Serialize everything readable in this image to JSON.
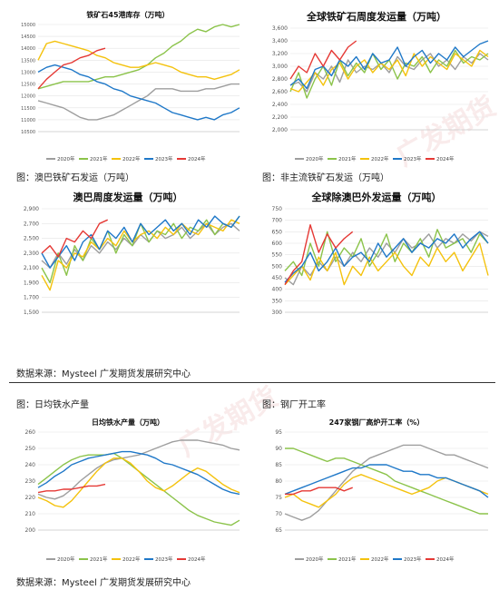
{
  "watermark": "广发期货",
  "colors": {
    "s2020": "#9e9e9e",
    "s2021": "#8bc34a",
    "s2022": "#f4c20d",
    "s2023": "#1f78c8",
    "s2024": "#e53935"
  },
  "captions": {
    "c1": "图：澳巴铁矿石发运（万吨）",
    "c2": "图：非主流铁矿石发运（万吨）",
    "c3": "图：日均铁水产量",
    "c4": "图：钢厂开工率"
  },
  "sources": {
    "s1": "数据来源：Mysteel  广发期货发展研究中心",
    "s2": "数据来源：Mysteel  广发期货发展研究中心"
  },
  "chart_data": [
    {
      "type": "line",
      "title": "铁矿石45港库存（万吨）",
      "ylim": [
        10500,
        15000
      ],
      "yticks": [
        "10500",
        "11000",
        "11500",
        "12000",
        "12500",
        "13000",
        "13500",
        "14000",
        "14500",
        "15000"
      ],
      "legend": [
        "2020年",
        "2021年",
        "2022年",
        "2023年",
        "2024年"
      ],
      "series": [
        {
          "name": "2020年",
          "values": [
            11800,
            11700,
            11600,
            11500,
            11300,
            11100,
            11000,
            11000,
            11100,
            11200,
            11400,
            11600,
            11800,
            12000,
            12300,
            12300,
            12300,
            12200,
            12200,
            12200,
            12300,
            12300,
            12400,
            12500,
            12500
          ]
        },
        {
          "name": "2021年",
          "values": [
            12300,
            12400,
            12500,
            12600,
            12600,
            12600,
            12600,
            12700,
            12800,
            12800,
            12900,
            13000,
            13100,
            13300,
            13600,
            13800,
            14100,
            14300,
            14600,
            14800,
            14700,
            14900,
            15000,
            14900,
            15000
          ]
        },
        {
          "name": "2022年",
          "values": [
            13500,
            14200,
            14300,
            14200,
            14100,
            14000,
            13900,
            13700,
            13600,
            13400,
            13300,
            13200,
            13200,
            13300,
            13400,
            13300,
            13200,
            13000,
            12900,
            12800,
            12800,
            12700,
            12800,
            12900,
            13100
          ]
        },
        {
          "name": "2023年",
          "values": [
            13000,
            13200,
            13300,
            13200,
            13100,
            12900,
            12800,
            12600,
            12500,
            12300,
            12200,
            12000,
            11900,
            11800,
            11700,
            11500,
            11300,
            11200,
            11100,
            11000,
            11100,
            11000,
            11200,
            11300,
            11500
          ]
        },
        {
          "name": "2024年",
          "values": [
            12300,
            12700,
            13000,
            13300,
            13400,
            13600,
            13700,
            13900,
            14000
          ]
        }
      ]
    },
    {
      "type": "line",
      "title": "全球铁矿石周度发运量（万吨）",
      "ylim": [
        2000,
        3600
      ],
      "yticks": [
        "2,000",
        "2,200",
        "2,400",
        "2,600",
        "2,800",
        "3,000",
        "3,200",
        "3,400",
        "3,600"
      ],
      "legend": [
        "2020年",
        "2021年",
        "2022年",
        "2023年",
        "2024年"
      ],
      "series": [
        {
          "name": "2020年",
          "values": [
            2700,
            2750,
            2600,
            2900,
            2800,
            3000,
            2750,
            3100,
            2900,
            3000,
            2950,
            3050,
            2900,
            3150,
            3000,
            2950,
            3100,
            3200,
            3000,
            3100,
            2950,
            3150,
            3050,
            3200,
            3100
          ]
        },
        {
          "name": "2021年",
          "values": [
            2600,
            2900,
            2500,
            2800,
            3000,
            2700,
            3100,
            2850,
            3050,
            2900,
            3200,
            2950,
            3100,
            2800,
            3050,
            3000,
            3150,
            2900,
            3100,
            3000,
            3250,
            3050,
            3150,
            3100,
            3200
          ]
        },
        {
          "name": "2022年",
          "values": [
            2650,
            2600,
            2750,
            2900,
            2700,
            2950,
            3050,
            2800,
            3000,
            3100,
            2900,
            3050,
            2950,
            3100,
            2850,
            3200,
            3000,
            3150,
            3050,
            2950,
            3200,
            3100,
            3000,
            3250,
            3150
          ]
        },
        {
          "name": "2023年",
          "values": [
            2700,
            2800,
            2650,
            2950,
            3000,
            2850,
            3100,
            3000,
            3150,
            2950,
            3200,
            3050,
            3100,
            3300,
            3000,
            3150,
            3250,
            3050,
            3200,
            3100,
            3300,
            3150,
            3250,
            3350,
            3400
          ]
        },
        {
          "name": "2024年",
          "values": [
            2800,
            3000,
            2900,
            3200,
            3000,
            3250,
            3100,
            3300,
            3400
          ]
        }
      ]
    },
    {
      "type": "line",
      "title": "澳巴周度发运量（万吨）",
      "ylim": [
        1500,
        2900
      ],
      "yticks": [
        "1,500",
        "1,700",
        "1,900",
        "2,100",
        "2,300",
        "2,500",
        "2,700",
        "2,900"
      ],
      "series": [
        {
          "name": "2020年",
          "values": [
            2200,
            2100,
            2300,
            2150,
            2350,
            2200,
            2400,
            2300,
            2450,
            2350,
            2500,
            2400,
            2550,
            2450,
            2600,
            2500,
            2550,
            2650,
            2500,
            2600,
            2700,
            2550,
            2650,
            2700,
            2600
          ]
        },
        {
          "name": "2021年",
          "values": [
            2100,
            1900,
            2300,
            2000,
            2400,
            2200,
            2500,
            2350,
            2600,
            2300,
            2550,
            2400,
            2700,
            2450,
            2600,
            2550,
            2700,
            2500,
            2650,
            2600,
            2750,
            2550,
            2700,
            2650,
            2800
          ]
        },
        {
          "name": "2022年",
          "values": [
            2000,
            1800,
            2200,
            2100,
            2300,
            2250,
            2450,
            2350,
            2500,
            2400,
            2600,
            2450,
            2550,
            2600,
            2500,
            2650,
            2550,
            2700,
            2600,
            2550,
            2700,
            2650,
            2600,
            2750,
            2700
          ]
        },
        {
          "name": "2023年",
          "values": [
            2300,
            2100,
            2250,
            2400,
            2200,
            2450,
            2550,
            2350,
            2600,
            2500,
            2650,
            2450,
            2700,
            2550,
            2650,
            2750,
            2600,
            2700,
            2550,
            2750,
            2650,
            2800,
            2700,
            2650,
            2800
          ]
        },
        {
          "name": "2024年",
          "values": [
            2300,
            2400,
            2250,
            2500,
            2450,
            2600,
            2500,
            2700,
            2750
          ]
        }
      ]
    },
    {
      "type": "line",
      "title": "全球除澳巴外发运量（万吨）",
      "ylim": [
        300,
        750
      ],
      "yticks": [
        "300",
        "350",
        "400",
        "450",
        "500",
        "550",
        "600",
        "650",
        "700",
        "750"
      ],
      "series": [
        {
          "name": "2020年",
          "values": [
            450,
            420,
            500,
            460,
            520,
            480,
            540,
            500,
            560,
            520,
            580,
            540,
            600,
            560,
            620,
            580,
            600,
            640,
            580,
            620,
            600,
            640,
            610,
            650,
            630
          ]
        },
        {
          "name": "2021年",
          "values": [
            480,
            520,
            460,
            600,
            500,
            650,
            520,
            580,
            540,
            620,
            500,
            560,
            640,
            520,
            600,
            560,
            620,
            540,
            660,
            580,
            600,
            620,
            560,
            640,
            600
          ]
        },
        {
          "name": "2022年",
          "values": [
            420,
            460,
            500,
            440,
            540,
            480,
            560,
            420,
            500,
            460,
            540,
            480,
            520,
            560,
            500,
            460,
            540,
            500,
            580,
            520,
            560,
            480,
            540,
            600,
            460
          ]
        },
        {
          "name": "2023年",
          "values": [
            430,
            470,
            500,
            560,
            480,
            520,
            580,
            500,
            540,
            560,
            520,
            600,
            540,
            580,
            620,
            560,
            600,
            580,
            620,
            600,
            640,
            580,
            620,
            650,
            600
          ]
        },
        {
          "name": "2024年",
          "values": [
            420,
            480,
            520,
            680,
            560,
            640,
            580,
            620,
            650
          ]
        }
      ]
    },
    {
      "type": "line",
      "title": "日均铁水产量（万吨）",
      "ylim": [
        200,
        260
      ],
      "yticks": [
        "200",
        "210",
        "220",
        "230",
        "240",
        "250",
        "260"
      ],
      "legend": [
        "2020年",
        "2021年",
        "2022年",
        "2023年",
        "2024年"
      ],
      "series": [
        {
          "name": "2020年",
          "values": [
            222,
            220,
            219,
            221,
            225,
            230,
            234,
            238,
            241,
            243,
            244,
            245,
            246,
            248,
            250,
            252,
            254,
            255,
            255,
            255,
            254,
            253,
            252,
            250,
            249
          ]
        },
        {
          "name": "2021年",
          "values": [
            228,
            232,
            236,
            240,
            243,
            245,
            246,
            246,
            246,
            247,
            244,
            240,
            236,
            232,
            228,
            224,
            220,
            216,
            212,
            209,
            207,
            205,
            204,
            203,
            206
          ]
        },
        {
          "name": "2022年",
          "values": [
            220,
            218,
            215,
            214,
            218,
            224,
            230,
            236,
            241,
            244,
            244,
            241,
            236,
            230,
            226,
            224,
            227,
            231,
            235,
            238,
            236,
            232,
            228,
            225,
            223
          ]
        },
        {
          "name": "2023年",
          "values": [
            226,
            229,
            233,
            236,
            240,
            242,
            244,
            245,
            246,
            247,
            248,
            248,
            247,
            246,
            244,
            241,
            240,
            238,
            236,
            234,
            231,
            228,
            225,
            223,
            222
          ]
        },
        {
          "name": "2024年",
          "values": [
            223,
            224,
            224,
            225,
            225,
            226,
            227,
            227,
            228
          ]
        }
      ]
    },
    {
      "type": "line",
      "title": "247家钢厂高炉开工率（%）",
      "ylim": [
        65,
        95
      ],
      "yticks": [
        "65",
        "70",
        "75",
        "80",
        "85",
        "90",
        "95"
      ],
      "legend": [
        "2020年",
        "2021年",
        "2022年",
        "2023年",
        "2024年"
      ],
      "series": [
        {
          "name": "2020年",
          "values": [
            70,
            69,
            68,
            69,
            71,
            74,
            77,
            80,
            83,
            85,
            87,
            88,
            89,
            90,
            91,
            91,
            91,
            90,
            89,
            88,
            88,
            87,
            86,
            85,
            84
          ]
        },
        {
          "name": "2021年",
          "values": [
            90,
            90,
            89,
            88,
            87,
            86,
            87,
            87,
            86,
            85,
            84,
            83,
            82,
            80,
            79,
            78,
            77,
            76,
            75,
            74,
            73,
            72,
            71,
            70,
            70
          ]
        },
        {
          "name": "2022年",
          "values": [
            75,
            76,
            74,
            73,
            72,
            74,
            76,
            79,
            81,
            82,
            81,
            80,
            79,
            78,
            77,
            76,
            77,
            78,
            80,
            81,
            80,
            79,
            78,
            77,
            76
          ]
        },
        {
          "name": "2023年",
          "values": [
            76,
            77,
            78,
            79,
            80,
            81,
            82,
            83,
            84,
            84,
            85,
            85,
            85,
            84,
            83,
            83,
            82,
            82,
            81,
            81,
            80,
            79,
            78,
            77,
            75
          ]
        },
        {
          "name": "2024年",
          "values": [
            76,
            76,
            77,
            77,
            78,
            78,
            78,
            77,
            78
          ]
        }
      ]
    }
  ]
}
